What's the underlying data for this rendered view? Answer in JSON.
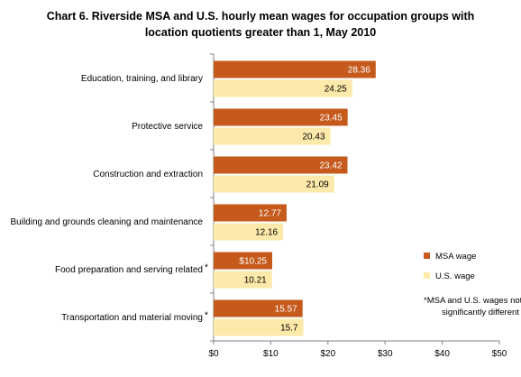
{
  "chart_data": {
    "type": "bar",
    "orientation": "horizontal",
    "title_lines": [
      "Chart 6. Riverside  MSA and U.S. hourly mean wages for occupation groups with",
      "location quotients greater than 1, May 2010"
    ],
    "categories": [
      "Education, training, and library",
      "Protective service",
      "Construction and extraction",
      "Building and grounds cleaning and maintenance",
      "Food preparation and serving related",
      "Transportation and material moving"
    ],
    "category_marks": [
      "",
      "",
      "",
      "",
      "*",
      "*"
    ],
    "series": [
      {
        "name": "MSA wage",
        "color": "#C55A1C",
        "values": [
          28.36,
          23.45,
          23.42,
          12.77,
          10.25,
          15.57
        ],
        "labels": [
          "28.36",
          "23.45",
          "23.42",
          "12.77",
          "$10.25",
          "15.57"
        ]
      },
      {
        "name": "U.S. wage",
        "color": "#FDE9A9",
        "values": [
          24.25,
          20.43,
          21.09,
          12.16,
          10.21,
          15.7
        ],
        "labels": [
          "24.25",
          "20.43",
          "21.09",
          "12.16",
          "10.21",
          "15.7"
        ]
      }
    ],
    "xlim": [
      0,
      50
    ],
    "xticks": [
      0,
      10,
      20,
      30,
      40,
      50
    ],
    "xtick_labels": [
      "$0",
      "$10",
      "$20",
      "$30",
      "$40",
      "$50"
    ],
    "legend_position": "right",
    "footnote_lines": [
      "*MSA and U.S. wages not",
      "significantly different"
    ],
    "grid": false
  }
}
